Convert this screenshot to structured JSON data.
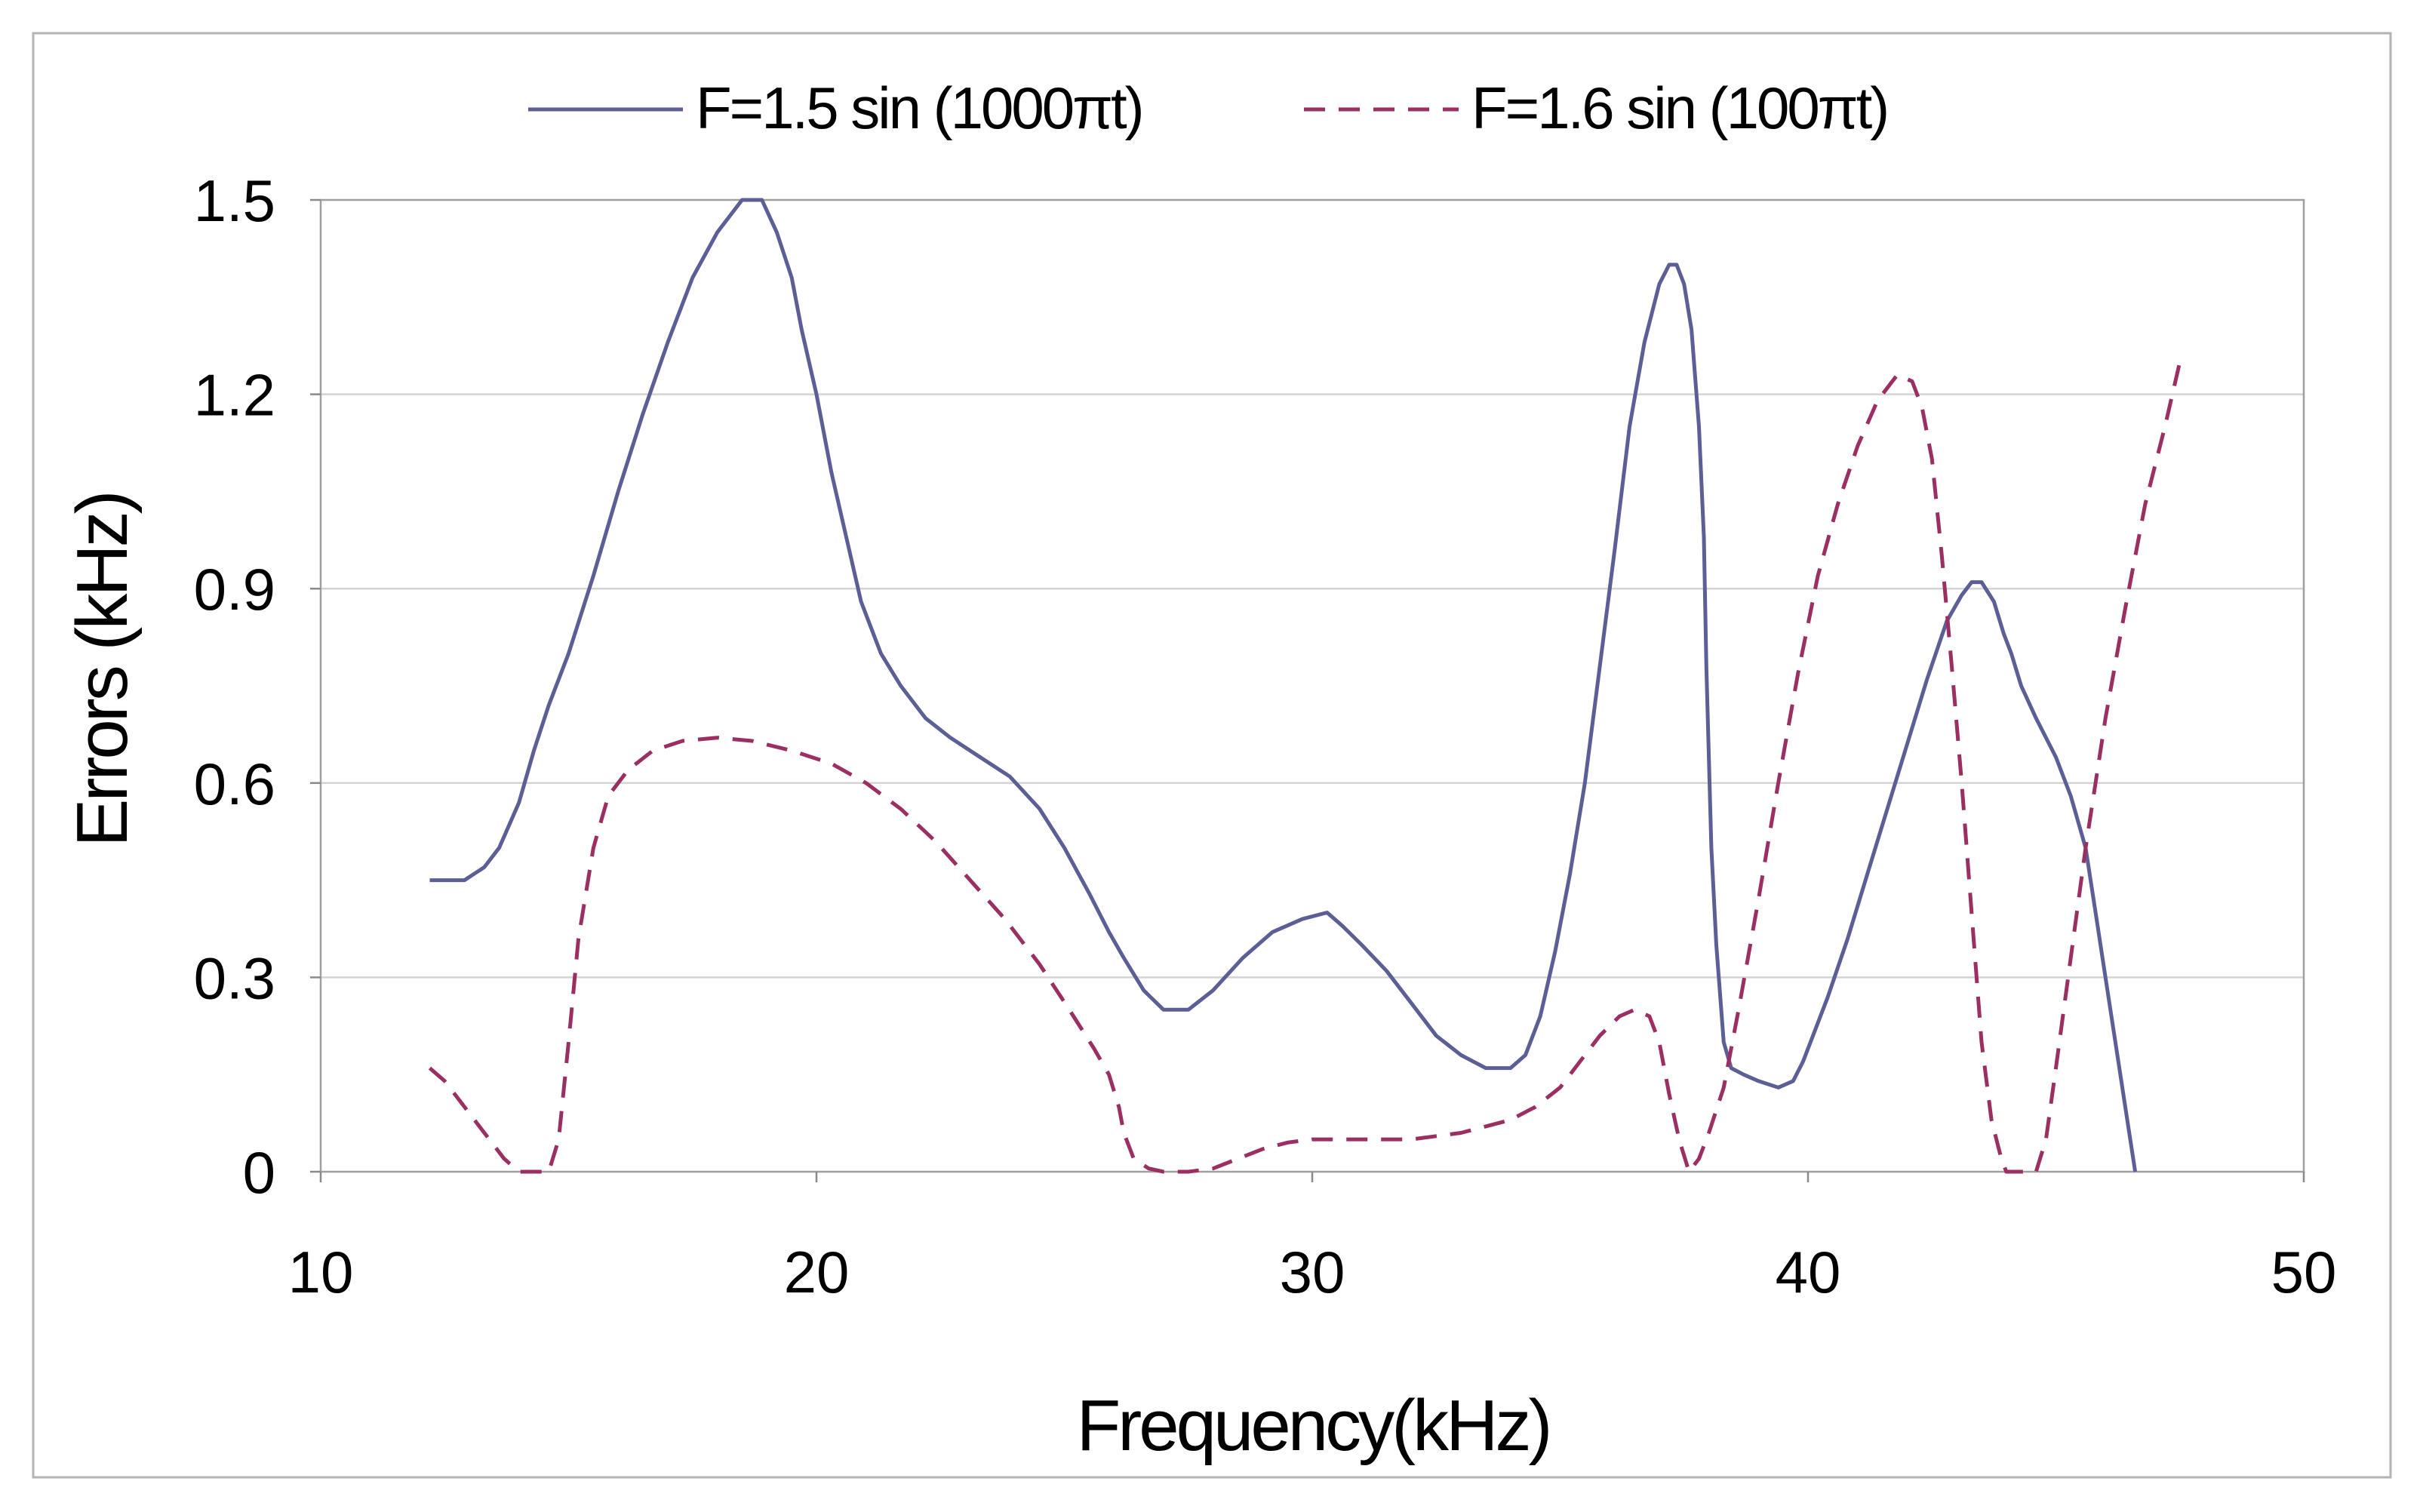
{
  "chart_data": {
    "type": "line",
    "title": "",
    "xlabel": "Frequency(kHz)",
    "ylabel": "Errors (kHz)",
    "xlim": [
      10,
      50
    ],
    "ylim": [
      0,
      1.5
    ],
    "xticks": [
      10,
      20,
      30,
      40,
      50
    ],
    "yticks": [
      0,
      0.3,
      0.6,
      0.9,
      1.2,
      1.5
    ],
    "x_tick_labels": [
      "10",
      "20",
      "30",
      "40",
      "50"
    ],
    "y_tick_labels": [
      "0",
      "0.3",
      "0.6",
      "0.9",
      "1.2",
      "1.5"
    ],
    "grid": "horizontal",
    "legend_position": "top",
    "series": [
      {
        "name": "F=1.5 sin (1000πt)",
        "color": "#5b5f95",
        "style": "solid",
        "x": [
          12.2,
          12.9,
          13.3,
          13.6,
          14.0,
          14.3,
          14.6,
          15.0,
          15.5,
          16.0,
          16.5,
          17.0,
          17.5,
          18.0,
          18.5,
          18.9,
          19.2,
          19.5,
          19.7,
          20.0,
          20.3,
          20.6,
          20.9,
          21.3,
          21.7,
          22.2,
          22.7,
          23.3,
          23.9,
          24.5,
          25.0,
          25.5,
          25.9,
          26.2,
          26.6,
          27.0,
          27.5,
          28.0,
          28.6,
          29.2,
          29.8,
          30.3,
          30.6,
          31.0,
          31.5,
          32.0,
          32.5,
          33.0,
          33.5,
          34.0,
          34.3,
          34.6,
          34.9,
          35.2,
          35.5,
          35.8,
          36.1,
          36.4,
          36.7,
          37.0,
          37.2,
          37.35,
          37.5,
          37.65,
          37.8,
          37.9,
          37.95,
          38.05,
          38.15,
          38.3,
          38.45,
          38.7,
          39.0,
          39.4,
          39.7,
          39.9,
          40.1,
          40.4,
          40.8,
          41.2,
          41.6,
          42.0,
          42.4,
          42.8,
          43.1,
          43.3,
          43.5,
          43.75,
          43.95,
          44.1,
          44.3,
          44.6,
          45.0,
          45.3,
          45.6,
          45.8,
          46.0,
          46.3,
          46.6
        ],
        "values": [
          0.45,
          0.45,
          0.47,
          0.5,
          0.57,
          0.65,
          0.72,
          0.8,
          0.92,
          1.05,
          1.17,
          1.28,
          1.38,
          1.45,
          1.5,
          1.5,
          1.45,
          1.38,
          1.3,
          1.2,
          1.08,
          0.98,
          0.88,
          0.8,
          0.75,
          0.7,
          0.67,
          0.64,
          0.61,
          0.56,
          0.5,
          0.43,
          0.37,
          0.33,
          0.28,
          0.25,
          0.25,
          0.28,
          0.33,
          0.37,
          0.39,
          0.4,
          0.38,
          0.35,
          0.31,
          0.26,
          0.21,
          0.18,
          0.16,
          0.16,
          0.18,
          0.24,
          0.34,
          0.46,
          0.6,
          0.78,
          0.96,
          1.15,
          1.28,
          1.37,
          1.4,
          1.4,
          1.37,
          1.3,
          1.15,
          0.98,
          0.78,
          0.5,
          0.35,
          0.2,
          0.16,
          0.15,
          0.14,
          0.13,
          0.14,
          0.17,
          0.21,
          0.27,
          0.36,
          0.46,
          0.56,
          0.66,
          0.76,
          0.85,
          0.89,
          0.91,
          0.91,
          0.88,
          0.83,
          0.8,
          0.75,
          0.7,
          0.64,
          0.58,
          0.5,
          0.4,
          0.3,
          0.15,
          0.0
        ]
      },
      {
        "name": "F=1.6 sin (100πt)",
        "color": "#9b2f62",
        "style": "dashed",
        "x": [
          12.2,
          12.5,
          12.8,
          13.1,
          13.4,
          13.7,
          14.0,
          14.2,
          14.4,
          14.6,
          14.8,
          15.0,
          15.2,
          15.5,
          15.8,
          16.2,
          16.7,
          17.3,
          18.0,
          18.7,
          19.5,
          20.3,
          21.0,
          21.7,
          22.4,
          23.1,
          23.8,
          24.5,
          25.1,
          25.6,
          25.9,
          26.1,
          26.2,
          26.4,
          26.7,
          27.0,
          27.5,
          28.0,
          28.5,
          29.0,
          29.5,
          30.0,
          30.5,
          31.0,
          31.5,
          32.0,
          32.5,
          33.0,
          33.5,
          34.0,
          34.5,
          35.0,
          35.4,
          35.8,
          36.2,
          36.5,
          36.8,
          37.0,
          37.2,
          37.4,
          37.6,
          37.8,
          38.0,
          38.3,
          38.6,
          39.0,
          39.4,
          39.8,
          40.2,
          40.6,
          41.0,
          41.4,
          41.8,
          42.1,
          42.3,
          42.5,
          42.7,
          42.9,
          43.1,
          43.3,
          43.5,
          43.7,
          43.9,
          44.0,
          44.2,
          44.4,
          44.6,
          44.8,
          45.0,
          45.3,
          45.6,
          46.0,
          46.4,
          46.8,
          47.2,
          47.5
        ],
        "values": [
          0.16,
          0.14,
          0.11,
          0.08,
          0.05,
          0.02,
          0.0,
          0.0,
          0.0,
          0.0,
          0.05,
          0.2,
          0.36,
          0.5,
          0.58,
          0.62,
          0.65,
          0.665,
          0.67,
          0.665,
          0.65,
          0.63,
          0.6,
          0.56,
          0.51,
          0.45,
          0.39,
          0.32,
          0.25,
          0.19,
          0.15,
          0.1,
          0.06,
          0.02,
          0.005,
          0.0,
          0.0,
          0.005,
          0.02,
          0.035,
          0.045,
          0.05,
          0.05,
          0.05,
          0.05,
          0.05,
          0.055,
          0.06,
          0.07,
          0.08,
          0.1,
          0.13,
          0.17,
          0.21,
          0.24,
          0.25,
          0.24,
          0.2,
          0.12,
          0.05,
          0.0,
          0.02,
          0.06,
          0.13,
          0.25,
          0.42,
          0.6,
          0.77,
          0.92,
          1.03,
          1.12,
          1.19,
          1.23,
          1.22,
          1.18,
          1.1,
          0.95,
          0.78,
          0.6,
          0.4,
          0.2,
          0.08,
          0.02,
          0.0,
          0.0,
          0.0,
          0.0,
          0.05,
          0.16,
          0.33,
          0.5,
          0.7,
          0.87,
          1.03,
          1.15,
          1.25
        ]
      }
    ]
  }
}
